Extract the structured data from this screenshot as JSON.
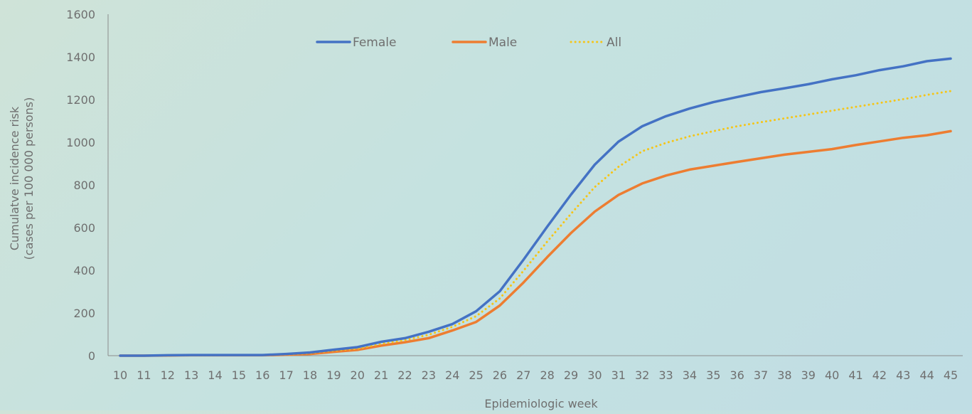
{
  "chart_data": {
    "type": "line",
    "xlabel": "Epidemiologic week",
    "ylabel_lines": [
      "Cumulatve incidence risk",
      "(cases per 100 000 persons)"
    ],
    "ylim": [
      0,
      1600
    ],
    "yticks": [
      0,
      200,
      400,
      600,
      800,
      1000,
      1200,
      1400,
      1600
    ],
    "x": [
      10,
      11,
      12,
      13,
      14,
      15,
      16,
      17,
      18,
      19,
      20,
      21,
      22,
      23,
      24,
      25,
      26,
      27,
      28,
      29,
      30,
      31,
      32,
      33,
      34,
      35,
      36,
      37,
      38,
      39,
      40,
      41,
      42,
      43,
      44,
      45
    ],
    "grid": false,
    "legend_position": "top",
    "series": [
      {
        "name": "Female",
        "color": "#4472c4",
        "style": "solid",
        "values": [
          0,
          0,
          2,
          3,
          3,
          3,
          3,
          8,
          15,
          28,
          40,
          65,
          82,
          112,
          148,
          208,
          302,
          450,
          605,
          755,
          895,
          1003,
          1075,
          1122,
          1158,
          1188,
          1212,
          1235,
          1253,
          1272,
          1295,
          1314,
          1338,
          1356,
          1380,
          1392
        ]
      },
      {
        "name": "Male",
        "color": "#ed7d31",
        "style": "solid",
        "values": [
          0,
          0,
          1,
          2,
          2,
          2,
          2,
          4,
          8,
          18,
          27,
          47,
          63,
          82,
          118,
          158,
          235,
          343,
          462,
          575,
          675,
          753,
          807,
          844,
          872,
          890,
          908,
          925,
          942,
          955,
          968,
          987,
          1004,
          1021,
          1033,
          1052
        ]
      },
      {
        "name": "All",
        "color": "#f5c518",
        "style": "dotted",
        "values": [
          0,
          0,
          1,
          2,
          2,
          3,
          3,
          6,
          12,
          24,
          33,
          56,
          73,
          98,
          135,
          185,
          268,
          398,
          535,
          665,
          790,
          885,
          958,
          997,
          1028,
          1052,
          1075,
          1094,
          1112,
          1130,
          1148,
          1166,
          1184,
          1202,
          1222,
          1240
        ]
      }
    ]
  }
}
